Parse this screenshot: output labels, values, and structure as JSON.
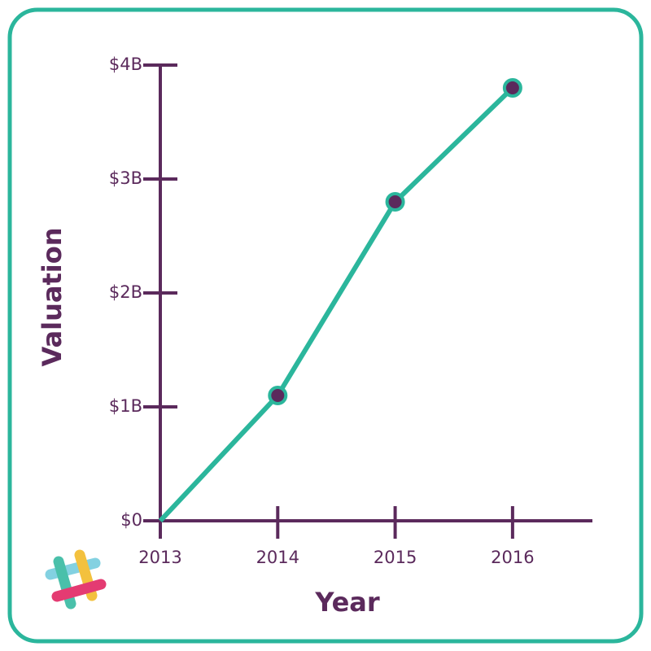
{
  "chart_data": {
    "type": "line",
    "x_label": "Year",
    "y_label": "Valuation",
    "x": [
      2013,
      2014,
      2015,
      2016
    ],
    "series": [
      {
        "color": "#2bb69c",
        "values": [
          0,
          1100000000,
          2800000000,
          3800000000
        ]
      }
    ],
    "xlim": [
      2013,
      2016.68
    ],
    "xticks": [
      2013,
      2014,
      2015,
      2016
    ],
    "ylim": [
      0,
      4000000000
    ],
    "yticks": [
      {
        "value": 0,
        "label": "$0"
      },
      {
        "value": 1000000000,
        "label": "$1B"
      },
      {
        "value": 2000000000,
        "label": "$2B"
      },
      {
        "value": 3000000000,
        "label": "$3B"
      },
      {
        "value": 4000000000,
        "label": "$4B"
      }
    ],
    "axis_color": "#5b2a5c"
  }
}
